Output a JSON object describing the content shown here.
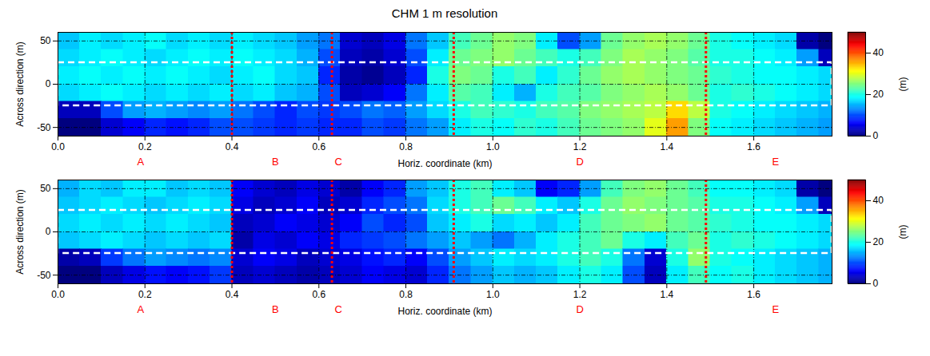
{
  "chart_data": {
    "type": "heatmap",
    "title": "CHM 1 m resolution",
    "x_label": "Horiz. coordinate (km)",
    "y_label": "Across direction (m)",
    "xlim": [
      0,
      1.78
    ],
    "xticks": [
      {
        "value": 0,
        "label": "0.0"
      },
      0.2,
      0.4,
      0.6,
      0.8,
      {
        "value": 1,
        "label": "1.0"
      },
      1.2,
      1.4,
      1.6
    ],
    "ylim": [
      -60,
      60
    ],
    "yticks": [
      -50,
      0,
      50
    ],
    "grid": true,
    "color": "jet",
    "x_edges": [
      0,
      0.05,
      0.1,
      0.15,
      0.2,
      0.25,
      0.3,
      0.35,
      0.4,
      0.45,
      0.5,
      0.55,
      0.6,
      0.65,
      0.7,
      0.75,
      0.8,
      0.85,
      0.9,
      0.95,
      1.0,
      1.05,
      1.1,
      1.15,
      1.2,
      1.25,
      1.3,
      1.35,
      1.4,
      1.45,
      1.5,
      1.55,
      1.6,
      1.65,
      1.7,
      1.75,
      1.8
    ],
    "y_edges": [
      60,
      40,
      20,
      0,
      -20,
      -40,
      -60
    ],
    "panels": [
      {
        "cells": [
          [
            16,
            18,
            17,
            18,
            19,
            17,
            18,
            17,
            18,
            17,
            16,
            14,
            12,
            4,
            3,
            5,
            12,
            16,
            22,
            24,
            26,
            25,
            18,
            10,
            14,
            24,
            26,
            27,
            26,
            24,
            20,
            19,
            18,
            17,
            2,
            0
          ],
          [
            17,
            18,
            19,
            18,
            17,
            18,
            19,
            18,
            19,
            18,
            17,
            15,
            10,
            3,
            2,
            4,
            10,
            18,
            24,
            25,
            26,
            24,
            22,
            20,
            22,
            25,
            27,
            26,
            25,
            23,
            20,
            20,
            19,
            18,
            14,
            3
          ],
          [
            18,
            19,
            18,
            19,
            18,
            19,
            18,
            17,
            18,
            19,
            17,
            16,
            8,
            2,
            1,
            3,
            8,
            20,
            25,
            24,
            20,
            22,
            18,
            21,
            24,
            26,
            27,
            26,
            25,
            24,
            21,
            20,
            19,
            19,
            18,
            17
          ],
          [
            17,
            18,
            19,
            18,
            17,
            18,
            17,
            18,
            17,
            18,
            16,
            15,
            10,
            3,
            4,
            6,
            12,
            18,
            23,
            22,
            18,
            15,
            20,
            22,
            23,
            25,
            26,
            27,
            26,
            24,
            20,
            21,
            20,
            19,
            18,
            17
          ],
          [
            3,
            3,
            10,
            14,
            15,
            14,
            13,
            14,
            12,
            10,
            8,
            10,
            9,
            10,
            12,
            11,
            14,
            17,
            20,
            22,
            21,
            20,
            22,
            23,
            25,
            26,
            27,
            28,
            33,
            28,
            20,
            19,
            18,
            17,
            16,
            15
          ],
          [
            0,
            0,
            4,
            6,
            8,
            7,
            8,
            10,
            10,
            9,
            8,
            9,
            8,
            8,
            10,
            9,
            12,
            14,
            18,
            20,
            19,
            21,
            20,
            22,
            24,
            25,
            26,
            30,
            36,
            25,
            19,
            18,
            17,
            16,
            15,
            14
          ]
        ]
      },
      {
        "cells": [
          [
            15,
            17,
            16,
            18,
            18,
            16,
            17,
            16,
            6,
            4,
            3,
            5,
            4,
            2,
            6,
            8,
            14,
            16,
            20,
            22,
            18,
            16,
            6,
            8,
            14,
            22,
            25,
            26,
            24,
            22,
            19,
            19,
            18,
            17,
            2,
            0
          ],
          [
            16,
            17,
            18,
            17,
            16,
            17,
            18,
            17,
            5,
            3,
            4,
            6,
            3,
            4,
            8,
            10,
            12,
            17,
            20,
            22,
            24,
            22,
            18,
            16,
            20,
            24,
            26,
            25,
            24,
            23,
            20,
            20,
            19,
            18,
            14,
            3
          ],
          [
            17,
            18,
            17,
            18,
            17,
            18,
            17,
            16,
            3,
            4,
            6,
            5,
            4,
            6,
            10,
            8,
            10,
            16,
            18,
            20,
            17,
            18,
            16,
            18,
            22,
            24,
            25,
            26,
            24,
            23,
            21,
            20,
            19,
            19,
            18,
            17
          ],
          [
            16,
            17,
            18,
            17,
            16,
            17,
            16,
            17,
            2,
            5,
            4,
            6,
            5,
            8,
            9,
            10,
            12,
            14,
            16,
            14,
            12,
            15,
            18,
            20,
            22,
            24,
            20,
            18,
            22,
            24,
            20,
            21,
            20,
            19,
            18,
            17
          ],
          [
            2,
            3,
            9,
            12,
            14,
            13,
            12,
            13,
            4,
            6,
            5,
            3,
            4,
            5,
            7,
            8,
            6,
            10,
            14,
            16,
            18,
            17,
            18,
            20,
            22,
            20,
            12,
            4,
            20,
            26,
            20,
            19,
            18,
            17,
            16,
            15
          ],
          [
            0,
            0,
            3,
            5,
            7,
            6,
            7,
            9,
            3,
            4,
            3,
            2,
            3,
            4,
            6,
            5,
            4,
            8,
            12,
            14,
            16,
            15,
            16,
            18,
            20,
            18,
            10,
            3,
            18,
            22,
            19,
            20,
            18,
            17,
            16,
            15
          ]
        ]
      }
    ],
    "colorbar": {
      "range": [
        0,
        50
      ],
      "ticks": [
        0,
        20,
        40
      ],
      "label": "(m)"
    },
    "region": {
      "x": [
        0,
        1.78
      ],
      "y": [
        -25,
        25
      ]
    },
    "zone_boundaries": [
      0.4,
      0.63,
      0.91,
      1.49
    ],
    "zones": [
      {
        "label": "A",
        "x": 0.19
      },
      {
        "label": "B",
        "x": 0.5
      },
      {
        "label": "C",
        "x": 0.645
      },
      {
        "label": "D",
        "x": 1.2
      },
      {
        "label": "E",
        "x": 1.65
      }
    ]
  }
}
